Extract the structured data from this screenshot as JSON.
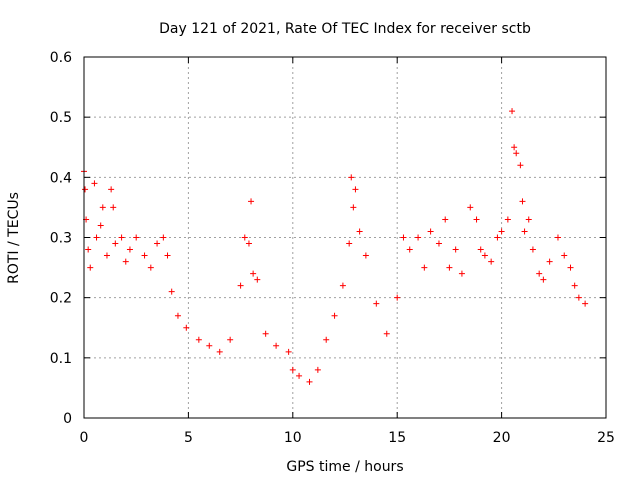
{
  "chart_data": {
    "type": "scatter",
    "title": "Day 121 of 2021, Rate Of TEC Index for receiver sctb",
    "xlabel": "GPS time / hours",
    "ylabel": "ROTI / TECUs",
    "xlim": [
      0,
      25
    ],
    "ylim": [
      0,
      0.6
    ],
    "x_ticks": [
      "0",
      "5",
      "10",
      "15",
      "20",
      "25"
    ],
    "y_ticks": [
      "0",
      "0.1",
      "0.2",
      "0.3",
      "0.4",
      "0.5",
      "0.6"
    ],
    "grid": true,
    "legend": "none",
    "marker": "plus",
    "color": "#ff0000",
    "series": [
      {
        "x": [
          0.0,
          0.05,
          0.1,
          0.2,
          0.3,
          0.5,
          0.6,
          0.8,
          0.9,
          1.1,
          1.3,
          1.4,
          1.5,
          1.8,
          2.0,
          2.2,
          2.5,
          2.9,
          3.2,
          3.5,
          3.8,
          4.0,
          4.2,
          4.5,
          4.9,
          5.5,
          6.0,
          6.5,
          7.0,
          7.5,
          7.7,
          7.9,
          8.0,
          8.1,
          8.3,
          8.7,
          9.2,
          9.8,
          10.0,
          10.3,
          10.8,
          11.2,
          11.6,
          12.0,
          12.4,
          12.7,
          12.8,
          12.9,
          13.0,
          13.2,
          13.5,
          14.0,
          14.5,
          15.0,
          15.3,
          15.6,
          16.0,
          16.3,
          16.6,
          17.0,
          17.3,
          17.5,
          17.8,
          18.1,
          18.5,
          18.8,
          19.0,
          19.2,
          19.5,
          19.8,
          20.0,
          20.3,
          20.5,
          20.6,
          20.7,
          20.9,
          21.0,
          21.1,
          21.3,
          21.5,
          21.8,
          22.0,
          22.3,
          22.7,
          23.0,
          23.3,
          23.5,
          23.7,
          24.0
        ],
        "y": [
          0.41,
          0.38,
          0.33,
          0.28,
          0.25,
          0.39,
          0.3,
          0.32,
          0.35,
          0.27,
          0.38,
          0.35,
          0.29,
          0.3,
          0.26,
          0.28,
          0.3,
          0.27,
          0.25,
          0.29,
          0.3,
          0.27,
          0.21,
          0.17,
          0.15,
          0.13,
          0.12,
          0.11,
          0.13,
          0.22,
          0.3,
          0.29,
          0.36,
          0.24,
          0.23,
          0.14,
          0.12,
          0.11,
          0.08,
          0.07,
          0.06,
          0.08,
          0.13,
          0.17,
          0.22,
          0.29,
          0.4,
          0.35,
          0.38,
          0.31,
          0.27,
          0.19,
          0.14,
          0.2,
          0.3,
          0.28,
          0.3,
          0.25,
          0.31,
          0.29,
          0.33,
          0.25,
          0.28,
          0.24,
          0.35,
          0.33,
          0.28,
          0.27,
          0.26,
          0.3,
          0.31,
          0.33,
          0.51,
          0.45,
          0.44,
          0.42,
          0.36,
          0.31,
          0.33,
          0.28,
          0.24,
          0.23,
          0.26,
          0.3,
          0.27,
          0.25,
          0.22,
          0.2,
          0.19
        ]
      }
    ]
  }
}
